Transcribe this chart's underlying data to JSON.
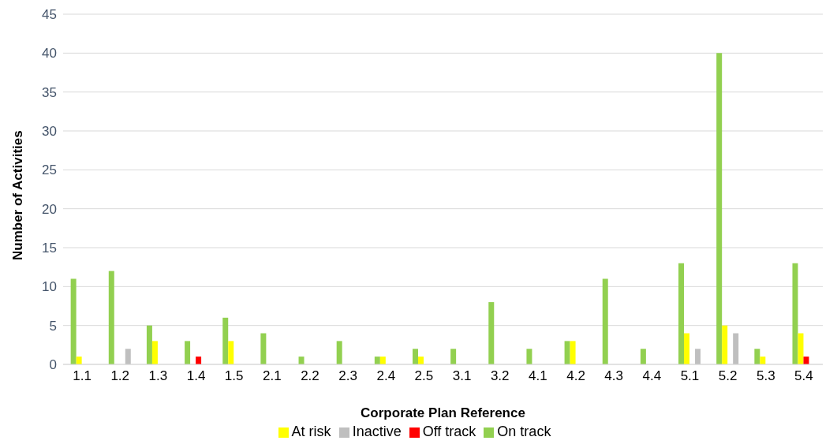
{
  "chart_data": {
    "type": "bar",
    "xlabel": "Corporate Plan Reference",
    "ylabel": "Number of Activities",
    "categories": [
      "1.1",
      "1.2",
      "1.3",
      "1.4",
      "1.5",
      "2.1",
      "2.2",
      "2.3",
      "2.4",
      "2.5",
      "3.1",
      "3.2",
      "4.1",
      "4.2",
      "4.3",
      "4.4",
      "5.1",
      "5.2",
      "5.3",
      "5.4"
    ],
    "series": [
      {
        "name": "On track",
        "color": "#92d050",
        "values": [
          11,
          12,
          5,
          3,
          6,
          4,
          1,
          3,
          1,
          2,
          2,
          8,
          2,
          3,
          11,
          2,
          13,
          40,
          2,
          13
        ]
      },
      {
        "name": "At risk",
        "color": "#ffff00",
        "values": [
          1,
          0,
          3,
          0,
          3,
          0,
          0,
          0,
          1,
          1,
          0,
          0,
          0,
          3,
          0,
          0,
          4,
          5,
          1,
          4
        ]
      },
      {
        "name": "Off track",
        "color": "#ff0000",
        "values": [
          0,
          0,
          0,
          1,
          0,
          0,
          0,
          0,
          0,
          0,
          0,
          0,
          0,
          0,
          0,
          0,
          0,
          0,
          0,
          1
        ]
      },
      {
        "name": "Inactive",
        "color": "#bfbfbf",
        "values": [
          0,
          2,
          0,
          0,
          0,
          0,
          0,
          0,
          0,
          0,
          0,
          0,
          0,
          0,
          0,
          0,
          2,
          4,
          0,
          0
        ]
      }
    ],
    "ylim": [
      0,
      45
    ],
    "yticks": [
      0,
      5,
      10,
      15,
      20,
      25,
      30,
      35,
      40,
      45
    ],
    "grid": "y",
    "legend": "bottom"
  }
}
